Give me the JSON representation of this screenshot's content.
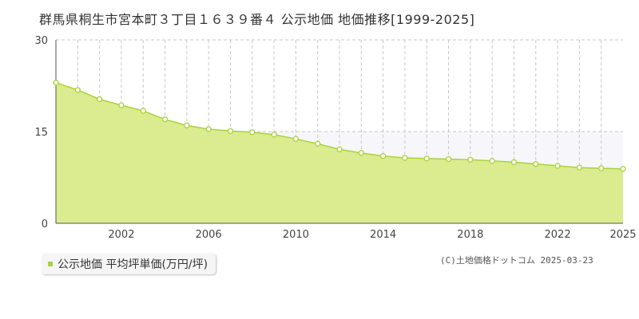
{
  "header": {
    "title": "群馬県桐生市宮本町３丁目１６３９番４ 公示地価 地価推移[1999-2025]"
  },
  "legend": {
    "label": "公示地価 平均坪単価(万円/坪)",
    "color": "#a8d33a"
  },
  "footer": {
    "copyright": "(C)土地価格ドットコム 2025-03-23"
  },
  "colors": {
    "area_fill": "#dbeb8f",
    "line": "#a8d33a",
    "point_fill": "#ffffff",
    "grid": "#c8c8c8",
    "band": "#f7f6fa"
  },
  "chart_data": {
    "type": "area",
    "title": "群馬県桐生市宮本町３丁目１６３９番４ 公示地価 地価推移[1999-2025]",
    "xlabel": "",
    "ylabel": "",
    "x": [
      1999,
      2000,
      2001,
      2002,
      2003,
      2004,
      2005,
      2006,
      2007,
      2008,
      2009,
      2010,
      2011,
      2012,
      2013,
      2014,
      2015,
      2016,
      2017,
      2018,
      2019,
      2020,
      2021,
      2022,
      2023,
      2024,
      2025
    ],
    "series": [
      {
        "name": "公示地価 平均坪単価(万円/坪)",
        "values": [
          23.0,
          21.8,
          20.3,
          19.3,
          18.4,
          17.0,
          16.0,
          15.4,
          15.1,
          14.9,
          14.5,
          13.8,
          13.0,
          12.1,
          11.5,
          11.0,
          10.7,
          10.6,
          10.5,
          10.4,
          10.2,
          10.0,
          9.7,
          9.4,
          9.1,
          9.0,
          8.9
        ]
      }
    ],
    "xticks": [
      2002,
      2006,
      2010,
      2014,
      2018,
      2022,
      2025
    ],
    "xtick_labels": [
      "2002",
      "2006",
      "2010",
      "2014",
      "2018",
      "2022",
      "2025"
    ],
    "yticks": [
      0,
      15,
      30
    ],
    "ytick_labels": [
      "0",
      "15",
      "30"
    ],
    "xlim": [
      1999,
      2025
    ],
    "ylim": [
      0,
      30
    ],
    "grid": true,
    "legend_position": "bottom-left"
  }
}
